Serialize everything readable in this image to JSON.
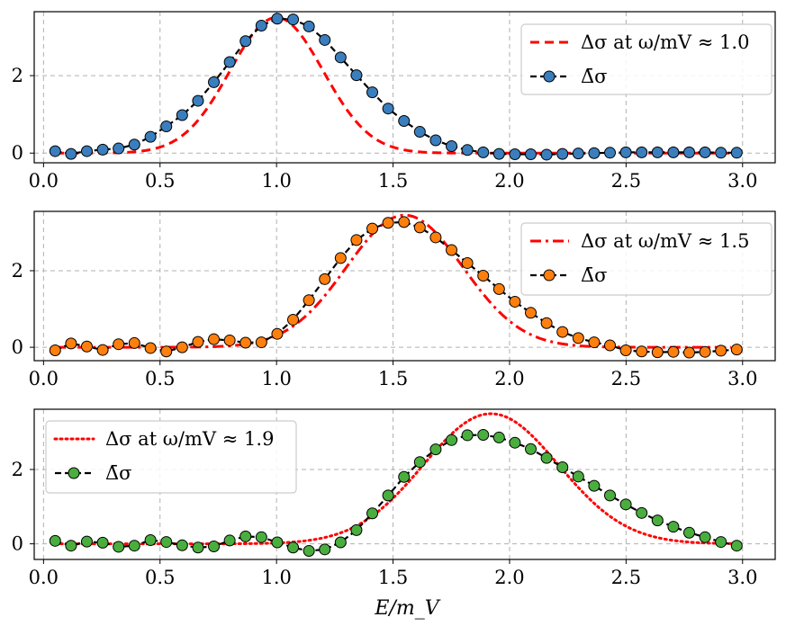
{
  "figure": {
    "xlabel": "E/m_V"
  },
  "chart_data": [
    {
      "type": "line",
      "panel": "top",
      "marker_color": "#3a7ebd",
      "xlim": [
        -0.04,
        3.14
      ],
      "ylim": [
        -0.25,
        3.65
      ],
      "xticks": [
        0.0,
        0.5,
        1.0,
        1.5,
        2.0,
        2.5,
        3.0
      ],
      "xtick_labels": [
        "0.0",
        "0.5",
        "1.0",
        "1.5",
        "2.0",
        "2.5",
        "3.0"
      ],
      "yticks": [
        0,
        2
      ],
      "ytick_labels": [
        "0",
        "2"
      ],
      "grid": true,
      "legend_position": "top-right",
      "legend": [
        {
          "label": "Δσ at ω/mV ≈ 1.0",
          "style": "dashed",
          "color": "#ff0000"
        },
        {
          "label": "Δ̄σ",
          "style": "dashed-marker",
          "color": "#000000"
        }
      ],
      "reference": {
        "center": 1.0,
        "width": 0.2,
        "amplitude": 3.5
      },
      "series": {
        "name": "Δ̄σ",
        "x": [
          0.05,
          0.118,
          0.186,
          0.254,
          0.322,
          0.39,
          0.459,
          0.527,
          0.595,
          0.663,
          0.731,
          0.799,
          0.867,
          0.935,
          1.003,
          1.071,
          1.139,
          1.207,
          1.275,
          1.343,
          1.411,
          1.479,
          1.547,
          1.615,
          1.683,
          1.751,
          1.819,
          1.887,
          1.955,
          2.023,
          2.091,
          2.159,
          2.227,
          2.295,
          2.363,
          2.431,
          2.499,
          2.567,
          2.635,
          2.703,
          2.771,
          2.839,
          2.907,
          2.975
        ],
        "y": [
          0.05,
          -0.02,
          0.05,
          0.09,
          0.12,
          0.22,
          0.42,
          0.69,
          0.98,
          1.35,
          1.83,
          2.35,
          2.89,
          3.29,
          3.47,
          3.45,
          3.27,
          2.92,
          2.47,
          2.01,
          1.57,
          1.15,
          0.83,
          0.55,
          0.33,
          0.18,
          0.08,
          0.02,
          -0.02,
          -0.03,
          -0.03,
          -0.04,
          -0.02,
          -0.01,
          0.0,
          0.01,
          0.02,
          0.02,
          0.02,
          0.02,
          0.02,
          0.02,
          0.01,
          0.01
        ]
      }
    },
    {
      "type": "line",
      "panel": "middle",
      "marker_color": "#ff7f0e",
      "xlim": [
        -0.04,
        3.14
      ],
      "ylim": [
        -0.35,
        3.55
      ],
      "xticks": [
        0.0,
        0.5,
        1.0,
        1.5,
        2.0,
        2.5,
        3.0
      ],
      "xtick_labels": [
        "0.0",
        "0.5",
        "1.0",
        "1.5",
        "2.0",
        "2.5",
        "3.0"
      ],
      "yticks": [
        0,
        2
      ],
      "ytick_labels": [
        "0",
        "2"
      ],
      "grid": true,
      "legend_position": "top-right",
      "legend": [
        {
          "label": "Δσ at ω/mV ≈ 1.5",
          "style": "dashdot",
          "color": "#ff0000"
        },
        {
          "label": "Δ̄σ",
          "style": "dashed-marker",
          "color": "#000000"
        }
      ],
      "reference": {
        "center": 1.55,
        "width": 0.25,
        "amplitude": 3.45
      },
      "series": {
        "name": "Δ̄σ",
        "x": [
          0.05,
          0.118,
          0.186,
          0.254,
          0.322,
          0.39,
          0.459,
          0.527,
          0.595,
          0.663,
          0.731,
          0.799,
          0.867,
          0.935,
          1.003,
          1.071,
          1.139,
          1.207,
          1.275,
          1.343,
          1.411,
          1.479,
          1.547,
          1.615,
          1.683,
          1.751,
          1.819,
          1.887,
          1.955,
          2.023,
          2.091,
          2.159,
          2.227,
          2.295,
          2.363,
          2.431,
          2.499,
          2.567,
          2.635,
          2.703,
          2.771,
          2.839,
          2.907,
          2.975
        ],
        "y": [
          -0.08,
          0.1,
          0.02,
          -0.07,
          0.08,
          0.11,
          -0.02,
          -0.11,
          0.0,
          0.14,
          0.21,
          0.18,
          0.12,
          0.13,
          0.35,
          0.72,
          1.23,
          1.78,
          2.33,
          2.8,
          3.1,
          3.25,
          3.27,
          3.13,
          2.87,
          2.54,
          2.2,
          1.87,
          1.52,
          1.19,
          0.9,
          0.63,
          0.4,
          0.24,
          0.13,
          0.05,
          -0.08,
          -0.11,
          -0.13,
          -0.12,
          -0.14,
          -0.12,
          -0.09,
          -0.06
        ]
      }
    },
    {
      "type": "line",
      "panel": "bottom",
      "marker_color": "#4aae3f",
      "xlim": [
        -0.04,
        3.14
      ],
      "ylim": [
        -0.42,
        3.62
      ],
      "xticks": [
        0.0,
        0.5,
        1.0,
        1.5,
        2.0,
        2.5,
        3.0
      ],
      "xtick_labels": [
        "0.0",
        "0.5",
        "1.0",
        "1.5",
        "2.0",
        "2.5",
        "3.0"
      ],
      "yticks": [
        0,
        2
      ],
      "ytick_labels": [
        "0",
        "2"
      ],
      "grid": true,
      "xlabel": "E/m_V",
      "legend_position": "top-left",
      "legend": [
        {
          "label": "Δσ at ω/mV ≈ 1.9",
          "style": "dotted",
          "color": "#ff0000"
        },
        {
          "label": "Δ̄σ",
          "style": "dashed-marker",
          "color": "#000000"
        }
      ],
      "reference": {
        "center": 1.92,
        "width": 0.29,
        "amplitude": 3.5
      },
      "series": {
        "name": "Δ̄σ",
        "x": [
          0.05,
          0.118,
          0.186,
          0.254,
          0.322,
          0.39,
          0.459,
          0.527,
          0.595,
          0.663,
          0.731,
          0.799,
          0.867,
          0.935,
          1.003,
          1.071,
          1.139,
          1.207,
          1.275,
          1.343,
          1.411,
          1.479,
          1.547,
          1.615,
          1.683,
          1.751,
          1.819,
          1.887,
          1.955,
          2.023,
          2.091,
          2.159,
          2.227,
          2.295,
          2.363,
          2.431,
          2.499,
          2.567,
          2.635,
          2.703,
          2.771,
          2.839,
          2.907,
          2.975
        ],
        "y": [
          0.08,
          -0.05,
          0.06,
          0.03,
          -0.08,
          -0.05,
          0.1,
          0.05,
          -0.04,
          -0.1,
          -0.07,
          0.09,
          0.2,
          0.18,
          0.04,
          -0.1,
          -0.19,
          -0.15,
          0.04,
          0.37,
          0.82,
          1.3,
          1.8,
          2.2,
          2.54,
          2.79,
          2.92,
          2.93,
          2.86,
          2.72,
          2.55,
          2.31,
          2.06,
          1.81,
          1.56,
          1.3,
          1.06,
          0.83,
          0.63,
          0.46,
          0.3,
          0.18,
          0.05,
          -0.05
        ]
      }
    }
  ]
}
